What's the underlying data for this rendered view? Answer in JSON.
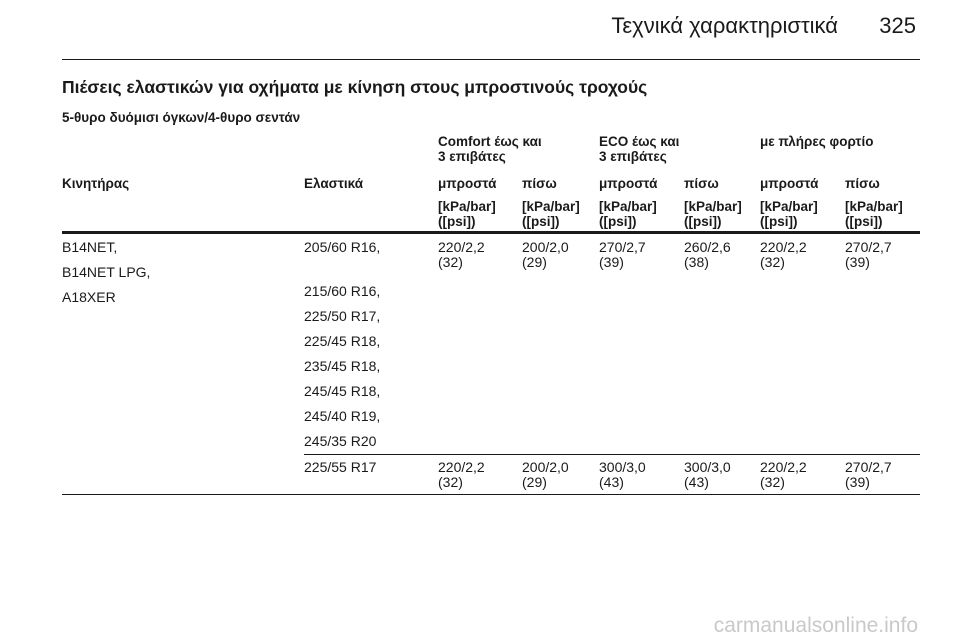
{
  "header": {
    "title": "Τεχνικά χαρακτηριστικά",
    "page_number": "325"
  },
  "section": {
    "title": "Πιέσεις ελαστικών για οχήματα με κίνηση στους μπροστινούς τροχούς",
    "subtitle": "5-θυρο δυόμισι όγκων/4-θυρο σεντάν"
  },
  "table": {
    "group_headers": {
      "comfort": "Comfort έως και\n3 επιβάτες",
      "eco": "ECO έως και\n3 επιβάτες",
      "full": "με πλήρες φορτίο"
    },
    "column_headers": {
      "engine": "Κινητήρας",
      "tyres": "Ελαστικά",
      "comfort_front": "μπροστά",
      "comfort_rear": "πίσω",
      "eco_front": "μπροστά",
      "eco_rear": "πίσω",
      "full_front": "μπροστά",
      "full_rear": "πίσω"
    },
    "unit": "[kPa/bar]\n([psi])",
    "row1": {
      "engines": [
        "B14NET,",
        "B14NET LPG,",
        "A18XER"
      ],
      "tyres": [
        "205/60 R16,",
        "215/60 R16,",
        "225/50 R17,",
        "225/45 R18,",
        "235/45 R18,",
        "245/45 R18,",
        "245/40 R19,",
        "245/35 R20"
      ],
      "values": [
        "220/2,2\n(32)",
        "200/2,0\n(29)",
        "270/2,7\n(39)",
        "260/2,6\n(38)",
        "220/2,2\n(32)",
        "270/2,7\n(39)"
      ]
    },
    "row2": {
      "tyre": "225/55 R17",
      "values": [
        "220/2,2\n(32)",
        "200/2,0\n(29)",
        "300/3,0\n(43)",
        "300/3,0\n(43)",
        "220/2,2\n(32)",
        "270/2,7\n(39)"
      ]
    }
  },
  "watermark": "carmanualsonline.info"
}
